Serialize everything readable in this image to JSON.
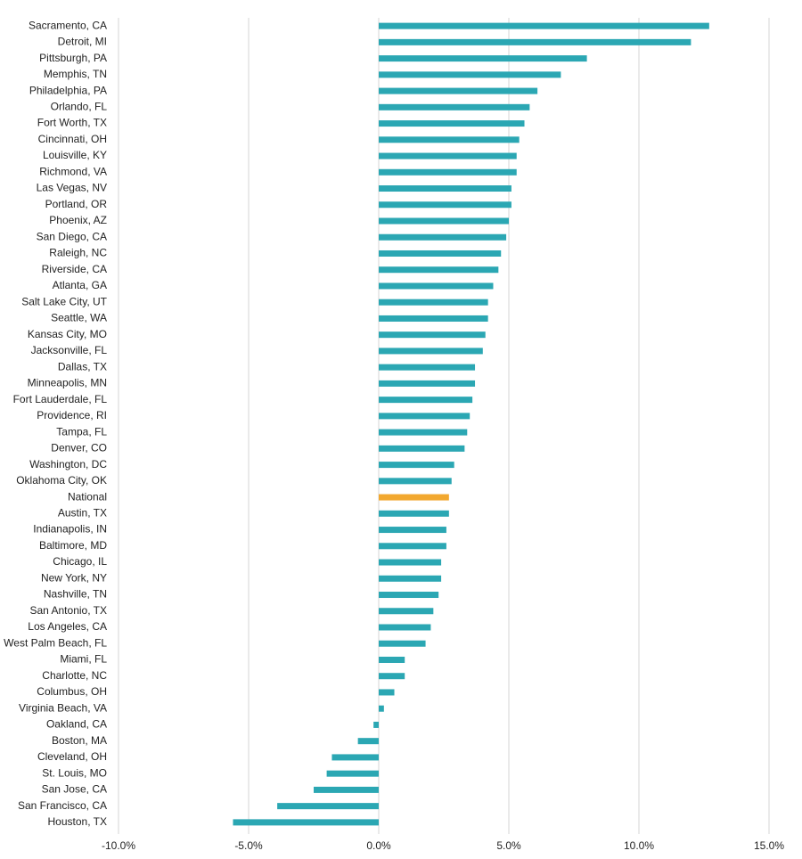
{
  "chart_data": {
    "type": "bar",
    "orientation": "horizontal",
    "categories": [
      "Sacramento, CA",
      "Detroit, MI",
      "Pittsburgh, PA",
      "Memphis, TN",
      "Philadelphia, PA",
      "Orlando, FL",
      "Fort Worth, TX",
      "Cincinnati, OH",
      "Louisville, KY",
      "Richmond, VA",
      "Las Vegas, NV",
      "Portland, OR",
      "Phoenix, AZ",
      "San Diego, CA",
      "Raleigh, NC",
      "Riverside, CA",
      "Atlanta, GA",
      "Salt Lake City, UT",
      "Seattle, WA",
      "Kansas City, MO",
      "Jacksonville, FL",
      "Dallas, TX",
      "Minneapolis, MN",
      "Fort Lauderdale, FL",
      "Providence, RI",
      "Tampa, FL",
      "Denver, CO",
      "Washington, DC",
      "Oklahoma City, OK",
      "National",
      "Austin, TX",
      "Indianapolis, IN",
      "Baltimore, MD",
      "Chicago, IL",
      "New York, NY",
      "Nashville, TN",
      "San Antonio, TX",
      "Los Angeles, CA",
      "West Palm Beach, FL",
      "Miami, FL",
      "Charlotte, NC",
      "Columbus, OH",
      "Virginia Beach, VA",
      "Oakland, CA",
      "Boston, MA",
      "Cleveland, OH",
      "St. Louis, MO",
      "San Jose, CA",
      "San Francisco, CA",
      "Houston, TX"
    ],
    "values": [
      12.7,
      12.0,
      8.0,
      7.0,
      6.1,
      5.8,
      5.6,
      5.4,
      5.3,
      5.3,
      5.1,
      5.1,
      5.0,
      4.9,
      4.7,
      4.6,
      4.4,
      4.2,
      4.2,
      4.1,
      4.0,
      3.7,
      3.7,
      3.6,
      3.5,
      3.4,
      3.3,
      2.9,
      2.8,
      2.7,
      2.7,
      2.6,
      2.6,
      2.4,
      2.4,
      2.3,
      2.1,
      2.0,
      1.8,
      1.0,
      1.0,
      0.6,
      0.2,
      -0.2,
      -0.8,
      -1.8,
      -2.0,
      -2.5,
      -3.9,
      -5.6
    ],
    "colors": [
      "#2ba7b3",
      "#2ba7b3",
      "#2ba7b3",
      "#2ba7b3",
      "#2ba7b3",
      "#2ba7b3",
      "#2ba7b3",
      "#2ba7b3",
      "#2ba7b3",
      "#2ba7b3",
      "#2ba7b3",
      "#2ba7b3",
      "#2ba7b3",
      "#2ba7b3",
      "#2ba7b3",
      "#2ba7b3",
      "#2ba7b3",
      "#2ba7b3",
      "#2ba7b3",
      "#2ba7b3",
      "#2ba7b3",
      "#2ba7b3",
      "#2ba7b3",
      "#2ba7b3",
      "#2ba7b3",
      "#2ba7b3",
      "#2ba7b3",
      "#2ba7b3",
      "#2ba7b3",
      "#f2a82f",
      "#2ba7b3",
      "#2ba7b3",
      "#2ba7b3",
      "#2ba7b3",
      "#2ba7b3",
      "#2ba7b3",
      "#2ba7b3",
      "#2ba7b3",
      "#2ba7b3",
      "#2ba7b3",
      "#2ba7b3",
      "#2ba7b3",
      "#2ba7b3",
      "#2ba7b3",
      "#2ba7b3",
      "#2ba7b3",
      "#2ba7b3",
      "#2ba7b3",
      "#2ba7b3",
      "#2ba7b3"
    ],
    "xlim": [
      -10,
      15
    ],
    "xticks": [
      {
        "value": -10,
        "label": "-10.0%"
      },
      {
        "value": -5,
        "label": "-5.0%"
      },
      {
        "value": 0,
        "label": "0.0%"
      },
      {
        "value": 5,
        "label": "5.0%"
      },
      {
        "value": 10,
        "label": "10.0%"
      },
      {
        "value": 15,
        "label": "15.0%"
      }
    ],
    "grid": true
  }
}
